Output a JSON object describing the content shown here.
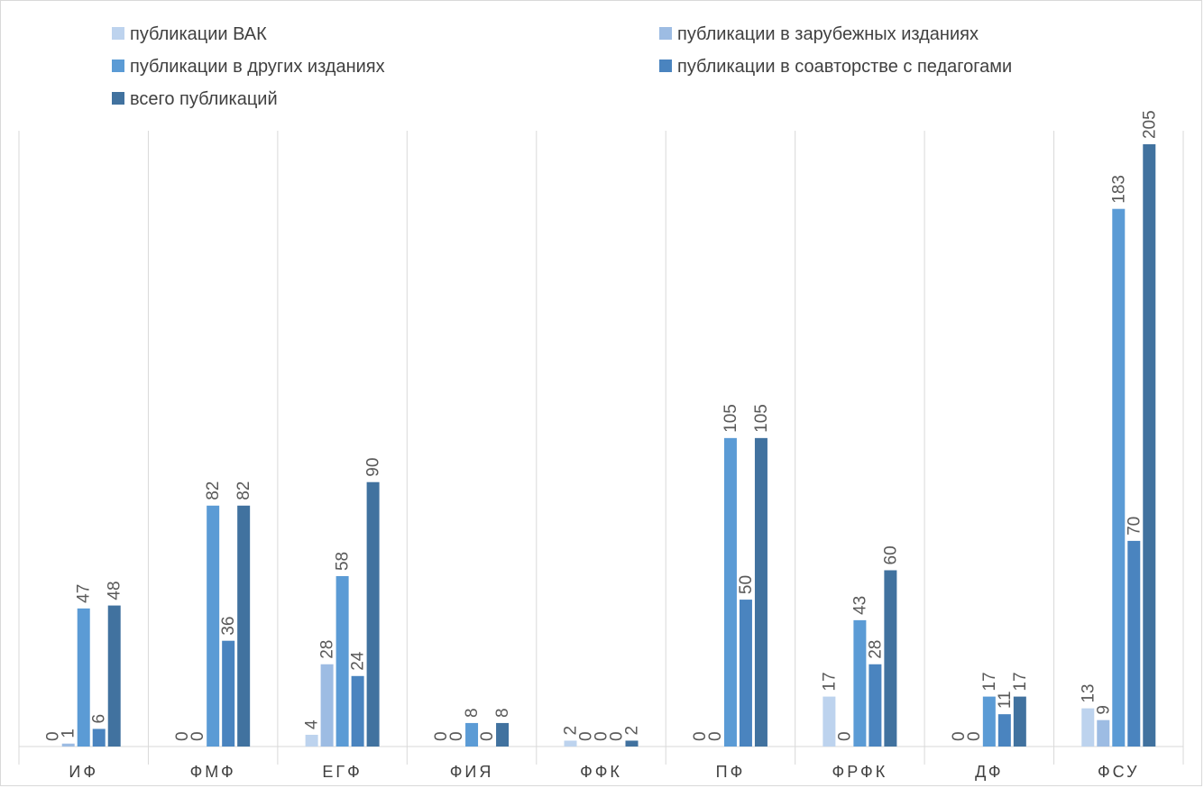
{
  "chart_data": {
    "type": "bar",
    "categories": [
      "ИФ",
      "ФМФ",
      "ЕГФ",
      "ФИЯ",
      "ФФК",
      "ПФ",
      "ФРФК",
      "ДФ",
      "ФСУ"
    ],
    "series": [
      {
        "name": "публикации ВАК",
        "color": "#bdd3ee",
        "values": [
          0,
          0,
          4,
          0,
          2,
          0,
          17,
          0,
          13
        ]
      },
      {
        "name": "публикации в зарубежных изданиях",
        "color": "#9dbce3",
        "values": [
          1,
          0,
          28,
          0,
          0,
          0,
          0,
          0,
          9
        ]
      },
      {
        "name": "публикации в других изданиях",
        "color": "#5b9bd5",
        "values": [
          47,
          82,
          58,
          8,
          0,
          105,
          43,
          17,
          183
        ]
      },
      {
        "name": "публикации в соавторстве с педагогами",
        "color": "#4a84bf",
        "values": [
          6,
          36,
          24,
          0,
          0,
          50,
          28,
          11,
          70
        ]
      },
      {
        "name": "всего публикаций",
        "color": "#41729f",
        "values": [
          48,
          82,
          90,
          8,
          2,
          105,
          60,
          17,
          205
        ]
      }
    ],
    "ylim": [
      0,
      210
    ],
    "grid": "vertical category separators",
    "legend": "top"
  }
}
